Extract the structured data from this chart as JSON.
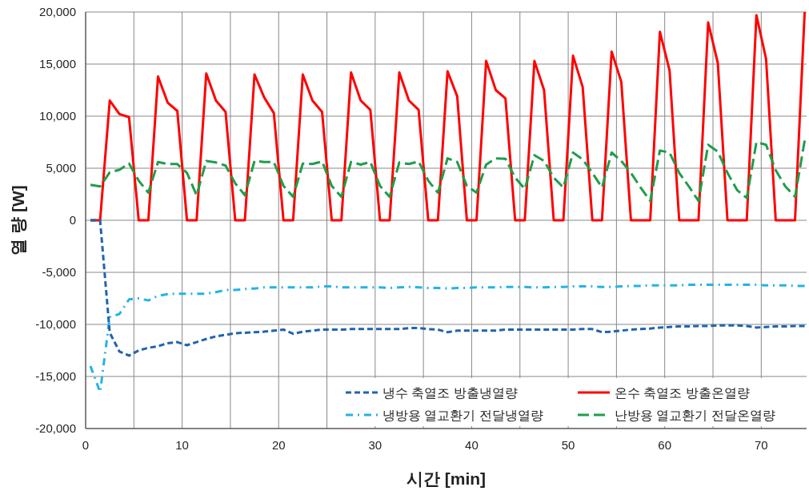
{
  "chart_data": {
    "type": "line",
    "xlabel": "시간  [min]",
    "ylabel": "열 량  [W]",
    "x": [
      0.5,
      1.5,
      2.5,
      3.5,
      4.5,
      5.5,
      6.5,
      7.5,
      8.5,
      9.5,
      10.5,
      11.5,
      12.5,
      13.5,
      14.5,
      15.5,
      16.5,
      17.5,
      18.5,
      19.5,
      20.5,
      21.5,
      22.5,
      23.5,
      24.5,
      25.5,
      26.5,
      27.5,
      28.5,
      29.5,
      30.5,
      31.5,
      32.5,
      33.5,
      34.5,
      35.5,
      36.5,
      37.5,
      38.5,
      39.5,
      40.5,
      41.5,
      42.5,
      43.5,
      44.5,
      45.5,
      46.5,
      47.5,
      48.5,
      49.5,
      50.5,
      51.5,
      52.5,
      53.5,
      54.5,
      55.5,
      56.5,
      57.5,
      58.5,
      59.5,
      60.5,
      61.5,
      62.5,
      63.5,
      64.5,
      65.5,
      66.5,
      67.5,
      68.5,
      69.5,
      70.5,
      71.5,
      72.5,
      73.5,
      74.5
    ],
    "series": [
      {
        "name": "냉수 축열조 방출냉열량",
        "color": "#1f64b0",
        "line_style": "dashed",
        "values": [
          0,
          0,
          -10800,
          -12600,
          -13000,
          -12500,
          -12250,
          -12100,
          -11800,
          -11700,
          -12000,
          -11700,
          -11400,
          -11150,
          -11000,
          -10850,
          -10800,
          -10750,
          -10700,
          -10600,
          -10500,
          -10900,
          -10700,
          -10600,
          -10500,
          -10500,
          -10500,
          -10450,
          -10450,
          -10450,
          -10450,
          -10450,
          -10450,
          -10350,
          -10350,
          -10450,
          -10500,
          -10750,
          -10600,
          -10600,
          -10600,
          -10600,
          -10600,
          -10500,
          -10500,
          -10500,
          -10500,
          -10500,
          -10500,
          -10500,
          -10500,
          -10450,
          -10450,
          -10750,
          -10700,
          -10600,
          -10500,
          -10450,
          -10400,
          -10300,
          -10250,
          -10200,
          -10200,
          -10150,
          -10150,
          -10100,
          -10100,
          -10100,
          -10150,
          -10300,
          -10250,
          -10200,
          -10200,
          -10150,
          -10150
        ]
      },
      {
        "name": "온수 축열조 방출온열량",
        "color": "#ff0000",
        "line_style": "solid",
        "values": [
          0,
          0,
          11500,
          10200,
          9900,
          0,
          0,
          13800,
          11300,
          10500,
          0,
          0,
          14100,
          11500,
          10400,
          0,
          0,
          14000,
          11800,
          10300,
          0,
          0,
          14000,
          11500,
          10400,
          0,
          0,
          14200,
          11500,
          10600,
          0,
          0,
          14200,
          11500,
          10600,
          0,
          0,
          14300,
          11900,
          0,
          0,
          15300,
          12500,
          11700,
          0,
          0,
          15300,
          12500,
          0,
          0,
          15800,
          12800,
          0,
          0,
          16200,
          13300,
          0,
          0,
          0,
          18100,
          14400,
          0,
          0,
          0,
          19000,
          15100,
          0,
          0,
          0,
          19700,
          15500,
          0,
          0,
          0,
          20000
        ]
      },
      {
        "name": "냉방용 열교환기 전달냉열량",
        "color": "#22b4e6",
        "line_style": "dashdot",
        "values": [
          -14000,
          -16500,
          -9300,
          -9000,
          -7600,
          -7500,
          -7700,
          -7250,
          -7100,
          -7050,
          -7050,
          -7050,
          -7050,
          -6900,
          -6700,
          -6700,
          -6600,
          -6550,
          -6450,
          -6450,
          -6450,
          -6450,
          -6450,
          -6450,
          -6350,
          -6350,
          -6450,
          -6450,
          -6450,
          -6450,
          -6450,
          -6500,
          -6450,
          -6400,
          -6450,
          -6500,
          -6500,
          -6550,
          -6500,
          -6500,
          -6450,
          -6450,
          -6450,
          -6400,
          -6400,
          -6400,
          -6450,
          -6450,
          -6400,
          -6400,
          -6350,
          -6350,
          -6350,
          -6400,
          -6400,
          -6350,
          -6300,
          -6300,
          -6250,
          -6250,
          -6250,
          -6250,
          -6200,
          -6200,
          -6200,
          -6200,
          -6200,
          -6200,
          -6200,
          -6200,
          -6250,
          -6250,
          -6250,
          -6300,
          -6300
        ]
      },
      {
        "name": "난방용 열교환기 전달온열량",
        "color": "#1e9e4a",
        "line_style": "longdash",
        "values": [
          3400,
          3250,
          4600,
          4850,
          5450,
          3800,
          2650,
          5600,
          5400,
          5400,
          4550,
          2400,
          5700,
          5550,
          5250,
          3550,
          2400,
          5700,
          5600,
          5600,
          3300,
          2250,
          5450,
          5400,
          5650,
          3300,
          2250,
          5600,
          5350,
          5600,
          3300,
          2250,
          5550,
          5400,
          5650,
          3800,
          2650,
          5950,
          5600,
          3300,
          2650,
          5350,
          5950,
          5900,
          4100,
          3000,
          6250,
          5700,
          4100,
          3150,
          6500,
          5850,
          4550,
          3150,
          6500,
          5700,
          4550,
          3150,
          1850,
          6700,
          6500,
          4550,
          3250,
          1850,
          7250,
          6600,
          4550,
          2900,
          2150,
          7500,
          7250,
          4800,
          3250,
          2250,
          7650
        ]
      }
    ],
    "xlim": [
      0,
      74.7
    ],
    "xticks": [
      0,
      {
        "value": 5,
        "label": null
      },
      10,
      {
        "value": 15,
        "label": null
      },
      20,
      {
        "value": 25,
        "label": null
      },
      30,
      {
        "value": 35,
        "label": null
      },
      40,
      {
        "value": 45,
        "label": null
      },
      50,
      {
        "value": 55,
        "label": null
      },
      60,
      {
        "value": 65,
        "label": null
      },
      70
    ],
    "ylim": [
      -20000,
      20000
    ],
    "yticks": [
      {
        "value": -20000,
        "label": "-20,000"
      },
      {
        "value": -15000,
        "label": "-15,000"
      },
      {
        "value": -10000,
        "label": "-10,000"
      },
      {
        "value": -5000,
        "label": "-5,000"
      },
      0,
      {
        "value": 5000,
        "label": "5,000"
      },
      {
        "value": 10000,
        "label": "10,000"
      },
      {
        "value": 15000,
        "label": "15,000"
      },
      {
        "value": 20000,
        "label": "20,000"
      }
    ],
    "grid": true,
    "legend": "bottom right",
    "marker": "none"
  }
}
